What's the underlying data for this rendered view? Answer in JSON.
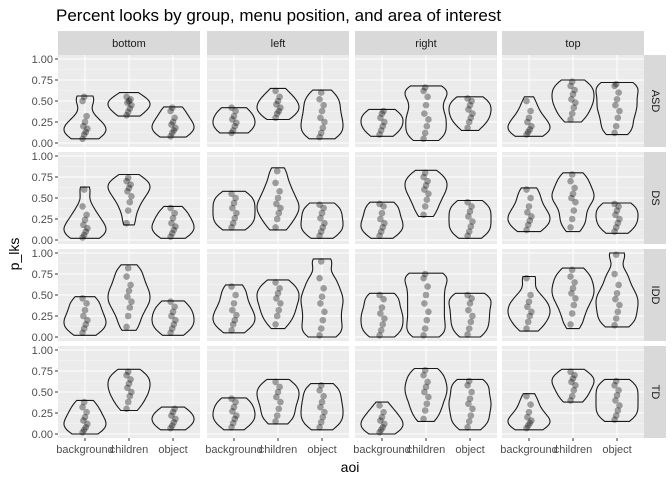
{
  "chart_data": {
    "type": "violin",
    "title": "Percent looks by group, menu position, and area of interest",
    "xlabel": "aoi",
    "ylabel": "p_lks",
    "ylim": [
      0,
      1.0
    ],
    "yticks": [
      "0.00",
      "0.25",
      "0.50",
      "0.75",
      "1.00"
    ],
    "x_categories": [
      "background",
      "children",
      "object"
    ],
    "facet_columns": [
      "bottom",
      "left",
      "right",
      "top"
    ],
    "facet_rows": [
      "ASD",
      "DS",
      "IDD",
      "TD"
    ],
    "grid": true,
    "points_shown": true,
    "colors": {
      "panel_bg": "#ebebeb",
      "strip_bg": "#d9d9d9",
      "grid": "#ffffff",
      "violin_outline": "#1a1a1a",
      "point": "#000000"
    },
    "panels": {
      "ASD": {
        "bottom": [
          {
            "aoi": "background",
            "min": 0.05,
            "max": 0.56,
            "values": [
              0.05,
              0.1,
              0.13,
              0.17,
              0.2,
              0.25,
              0.32,
              0.5,
              0.55
            ]
          },
          {
            "aoi": "children",
            "min": 0.32,
            "max": 0.6,
            "values": [
              0.33,
              0.37,
              0.41,
              0.45,
              0.48,
              0.5,
              0.52,
              0.55
            ]
          },
          {
            "aoi": "object",
            "min": 0.07,
            "max": 0.43,
            "values": [
              0.08,
              0.12,
              0.15,
              0.18,
              0.22,
              0.25,
              0.3,
              0.38,
              0.42
            ]
          }
        ],
        "left": [
          {
            "aoi": "background",
            "min": 0.12,
            "max": 0.42,
            "values": [
              0.12,
              0.15,
              0.2,
              0.24,
              0.28,
              0.32,
              0.38,
              0.42
            ]
          },
          {
            "aoi": "children",
            "min": 0.28,
            "max": 0.65,
            "values": [
              0.3,
              0.35,
              0.38,
              0.42,
              0.46,
              0.5,
              0.55,
              0.62
            ]
          },
          {
            "aoi": "object",
            "min": 0.05,
            "max": 0.63,
            "values": [
              0.07,
              0.12,
              0.18,
              0.25,
              0.3,
              0.38,
              0.45,
              0.52,
              0.6
            ]
          }
        ],
        "right": [
          {
            "aoi": "background",
            "min": 0.08,
            "max": 0.4,
            "values": [
              0.1,
              0.15,
              0.2,
              0.25,
              0.3,
              0.35,
              0.38
            ]
          },
          {
            "aoi": "children",
            "min": 0.03,
            "max": 0.68,
            "values": [
              0.05,
              0.12,
              0.2,
              0.28,
              0.35,
              0.45,
              0.55,
              0.62,
              0.66
            ]
          },
          {
            "aoi": "object",
            "min": 0.15,
            "max": 0.55,
            "values": [
              0.18,
              0.25,
              0.3,
              0.35,
              0.4,
              0.45,
              0.5,
              0.53
            ]
          }
        ],
        "top": [
          {
            "aoi": "background",
            "min": 0.08,
            "max": 0.55,
            "values": [
              0.1,
              0.13,
              0.16,
              0.2,
              0.25,
              0.3,
              0.38,
              0.5
            ]
          },
          {
            "aoi": "children",
            "min": 0.25,
            "max": 0.75,
            "values": [
              0.28,
              0.35,
              0.42,
              0.48,
              0.52,
              0.58,
              0.63,
              0.68,
              0.73
            ]
          },
          {
            "aoi": "object",
            "min": 0.1,
            "max": 0.72,
            "values": [
              0.12,
              0.2,
              0.3,
              0.38,
              0.45,
              0.52,
              0.6,
              0.68,
              0.7
            ]
          }
        ]
      },
      "DS": {
        "bottom": [
          {
            "aoi": "background",
            "min": 0.02,
            "max": 0.63,
            "values": [
              0.03,
              0.06,
              0.1,
              0.14,
              0.18,
              0.24,
              0.3,
              0.4,
              0.6
            ]
          },
          {
            "aoi": "children",
            "min": 0.18,
            "max": 0.78,
            "values": [
              0.2,
              0.35,
              0.45,
              0.52,
              0.58,
              0.62,
              0.66,
              0.7,
              0.74
            ]
          },
          {
            "aoi": "object",
            "min": 0.02,
            "max": 0.4,
            "values": [
              0.04,
              0.08,
              0.12,
              0.16,
              0.2,
              0.26,
              0.32,
              0.38
            ]
          }
        ],
        "left": [
          {
            "aoi": "background",
            "min": 0.12,
            "max": 0.58,
            "values": [
              0.15,
              0.2,
              0.26,
              0.32,
              0.38,
              0.44,
              0.5,
              0.55
            ]
          },
          {
            "aoi": "children",
            "min": 0.12,
            "max": 0.86,
            "values": [
              0.15,
              0.25,
              0.32,
              0.38,
              0.43,
              0.5,
              0.58,
              0.68,
              0.82
            ]
          },
          {
            "aoi": "object",
            "min": 0.02,
            "max": 0.44,
            "values": [
              0.05,
              0.1,
              0.15,
              0.2,
              0.26,
              0.32,
              0.38,
              0.42
            ]
          }
        ],
        "right": [
          {
            "aoi": "background",
            "min": 0.02,
            "max": 0.45,
            "values": [
              0.05,
              0.1,
              0.15,
              0.2,
              0.25,
              0.32,
              0.4,
              0.43
            ]
          },
          {
            "aoi": "children",
            "min": 0.28,
            "max": 0.83,
            "values": [
              0.3,
              0.4,
              0.48,
              0.55,
              0.6,
              0.65,
              0.7,
              0.75,
              0.8
            ]
          },
          {
            "aoi": "object",
            "min": 0.02,
            "max": 0.47,
            "values": [
              0.05,
              0.1,
              0.16,
              0.22,
              0.28,
              0.34,
              0.4,
              0.45
            ]
          }
        ],
        "top": [
          {
            "aoi": "background",
            "min": 0.1,
            "max": 0.62,
            "values": [
              0.12,
              0.18,
              0.23,
              0.28,
              0.33,
              0.4,
              0.5,
              0.6
            ]
          },
          {
            "aoi": "children",
            "min": 0.1,
            "max": 0.8,
            "values": [
              0.15,
              0.25,
              0.35,
              0.45,
              0.5,
              0.55,
              0.62,
              0.7,
              0.78
            ]
          },
          {
            "aoi": "object",
            "min": 0.08,
            "max": 0.44,
            "values": [
              0.1,
              0.15,
              0.2,
              0.25,
              0.3,
              0.35,
              0.4,
              0.43
            ]
          }
        ]
      },
      "IDD": {
        "bottom": [
          {
            "aoi": "background",
            "min": 0.02,
            "max": 0.48,
            "values": [
              0.05,
              0.1,
              0.15,
              0.2,
              0.25,
              0.32,
              0.4,
              0.46
            ]
          },
          {
            "aoi": "children",
            "min": 0.08,
            "max": 0.86,
            "values": [
              0.12,
              0.25,
              0.35,
              0.42,
              0.48,
              0.55,
              0.62,
              0.72,
              0.82
            ]
          },
          {
            "aoi": "object",
            "min": 0.02,
            "max": 0.43,
            "values": [
              0.05,
              0.1,
              0.15,
              0.2,
              0.25,
              0.3,
              0.36,
              0.42
            ]
          }
        ],
        "left": [
          {
            "aoi": "background",
            "min": 0.05,
            "max": 0.62,
            "values": [
              0.08,
              0.15,
              0.2,
              0.26,
              0.32,
              0.4,
              0.5,
              0.6
            ]
          },
          {
            "aoi": "children",
            "min": 0.1,
            "max": 0.68,
            "values": [
              0.15,
              0.25,
              0.32,
              0.4,
              0.46,
              0.52,
              0.58,
              0.65
            ]
          },
          {
            "aoi": "object",
            "min": 0.0,
            "max": 0.93,
            "values": [
              0.02,
              0.1,
              0.2,
              0.3,
              0.4,
              0.48,
              0.58,
              0.7,
              0.9
            ]
          }
        ],
        "right": [
          {
            "aoi": "background",
            "min": 0.0,
            "max": 0.52,
            "values": [
              0.02,
              0.08,
              0.15,
              0.22,
              0.28,
              0.35,
              0.45,
              0.5
            ]
          },
          {
            "aoi": "children",
            "min": 0.0,
            "max": 0.76,
            "values": [
              0.02,
              0.1,
              0.2,
              0.3,
              0.4,
              0.5,
              0.6,
              0.7,
              0.75
            ]
          },
          {
            "aoi": "object",
            "min": 0.0,
            "max": 0.52,
            "values": [
              0.03,
              0.1,
              0.18,
              0.25,
              0.32,
              0.4,
              0.46,
              0.5
            ]
          }
        ],
        "top": [
          {
            "aoi": "background",
            "min": 0.07,
            "max": 0.72,
            "values": [
              0.1,
              0.18,
              0.25,
              0.3,
              0.36,
              0.42,
              0.5,
              0.7
            ]
          },
          {
            "aoi": "children",
            "min": 0.1,
            "max": 0.82,
            "values": [
              0.15,
              0.28,
              0.38,
              0.46,
              0.52,
              0.58,
              0.65,
              0.72,
              0.8
            ]
          },
          {
            "aoi": "object",
            "min": 0.12,
            "max": 1.0,
            "values": [
              0.14,
              0.22,
              0.3,
              0.38,
              0.45,
              0.52,
              0.62,
              0.75,
              0.98
            ]
          }
        ]
      },
      "TD": {
        "bottom": [
          {
            "aoi": "background",
            "min": 0.0,
            "max": 0.4,
            "values": [
              0.02,
              0.05,
              0.08,
              0.12,
              0.16,
              0.2,
              0.26,
              0.32,
              0.38
            ]
          },
          {
            "aoi": "children",
            "min": 0.28,
            "max": 0.77,
            "values": [
              0.3,
              0.38,
              0.45,
              0.5,
              0.55,
              0.6,
              0.65,
              0.7,
              0.74
            ]
          },
          {
            "aoi": "object",
            "min": 0.05,
            "max": 0.32,
            "values": [
              0.07,
              0.1,
              0.14,
              0.18,
              0.22,
              0.26,
              0.3
            ]
          }
        ],
        "left": [
          {
            "aoi": "background",
            "min": 0.05,
            "max": 0.43,
            "values": [
              0.08,
              0.13,
              0.18,
              0.22,
              0.27,
              0.32,
              0.38,
              0.42
            ]
          },
          {
            "aoi": "children",
            "min": 0.12,
            "max": 0.65,
            "values": [
              0.15,
              0.22,
              0.3,
              0.38,
              0.44,
              0.5,
              0.56,
              0.62
            ]
          },
          {
            "aoi": "object",
            "min": 0.05,
            "max": 0.6,
            "values": [
              0.08,
              0.14,
              0.2,
              0.26,
              0.32,
              0.38,
              0.45,
              0.52,
              0.58
            ]
          }
        ],
        "right": [
          {
            "aoi": "background",
            "min": 0.0,
            "max": 0.38,
            "values": [
              0.02,
              0.05,
              0.08,
              0.12,
              0.16,
              0.2,
              0.26,
              0.34
            ]
          },
          {
            "aoi": "children",
            "min": 0.15,
            "max": 0.78,
            "values": [
              0.18,
              0.28,
              0.36,
              0.44,
              0.5,
              0.56,
              0.62,
              0.7,
              0.76
            ]
          },
          {
            "aoi": "object",
            "min": 0.05,
            "max": 0.65,
            "values": [
              0.08,
              0.15,
              0.22,
              0.3,
              0.36,
              0.42,
              0.5,
              0.58,
              0.63
            ]
          }
        ],
        "top": [
          {
            "aoi": "background",
            "min": 0.05,
            "max": 0.48,
            "values": [
              0.07,
              0.1,
              0.13,
              0.16,
              0.2,
              0.26,
              0.35,
              0.45
            ]
          },
          {
            "aoi": "children",
            "min": 0.38,
            "max": 0.77,
            "values": [
              0.4,
              0.45,
              0.52,
              0.58,
              0.62,
              0.66,
              0.7,
              0.74
            ]
          },
          {
            "aoi": "object",
            "min": 0.15,
            "max": 0.65,
            "values": [
              0.17,
              0.22,
              0.28,
              0.34,
              0.4,
              0.46,
              0.52,
              0.58,
              0.63
            ]
          }
        ]
      }
    }
  }
}
